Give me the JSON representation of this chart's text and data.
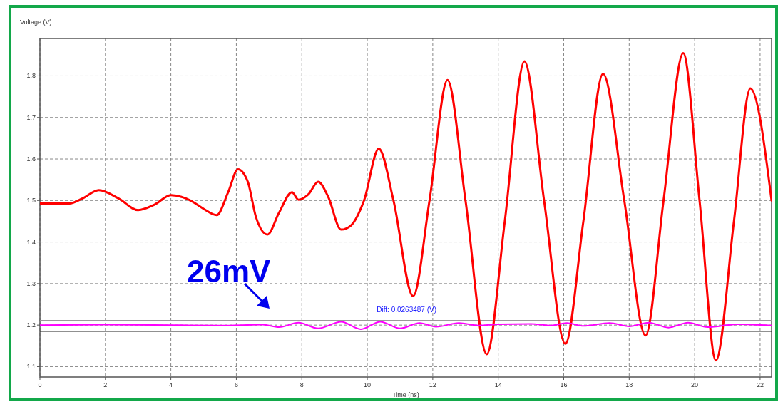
{
  "chart_data": {
    "type": "line",
    "xlabel": "Time (ns)",
    "ylabel": "Voltage (V)",
    "xlim": [
      0,
      22.35
    ],
    "ylim": [
      1.075,
      1.89
    ],
    "xticks": [
      0,
      2,
      4,
      6,
      8,
      10,
      12,
      14,
      16,
      18,
      20,
      22
    ],
    "yticks": [
      1.1,
      1.2,
      1.3,
      1.4,
      1.5,
      1.6,
      1.7,
      1.8
    ],
    "grid": true,
    "marker": "none",
    "line_style": "solid",
    "series": [
      {
        "color": "#ff0000",
        "x": [
          0,
          0.9,
          1.3,
          1.8,
          2.4,
          3.0,
          3.5,
          4.0,
          4.6,
          5.0,
          5.4,
          5.75,
          6.05,
          6.35,
          6.6,
          6.95,
          7.3,
          7.7,
          7.9,
          8.2,
          8.5,
          8.8,
          9.2,
          9.5,
          9.9,
          10.35,
          10.8,
          11.4,
          11.9,
          12.45,
          13.0,
          13.65,
          14.2,
          14.8,
          15.4,
          16.05,
          16.6,
          17.2,
          17.85,
          18.5,
          19.05,
          19.65,
          20.15,
          20.65,
          21.2,
          21.7,
          22.35
        ],
        "values": [
          1.493,
          1.493,
          1.505,
          1.525,
          1.505,
          1.477,
          1.49,
          1.513,
          1.5,
          1.48,
          1.465,
          1.52,
          1.575,
          1.545,
          1.46,
          1.418,
          1.47,
          1.52,
          1.502,
          1.515,
          1.545,
          1.51,
          1.43,
          1.44,
          1.5,
          1.625,
          1.5,
          1.27,
          1.5,
          1.79,
          1.5,
          1.13,
          1.45,
          1.835,
          1.5,
          1.155,
          1.45,
          1.805,
          1.5,
          1.175,
          1.5,
          1.855,
          1.5,
          1.115,
          1.45,
          1.77,
          1.5
        ]
      },
      {
        "color": "#ff00ff",
        "x": [
          0,
          2,
          4,
          5.5,
          6.8,
          7.3,
          7.9,
          8.5,
          9.2,
          9.8,
          10.4,
          11.0,
          11.6,
          12.1,
          12.8,
          13.4,
          14.0,
          15.0,
          15.6,
          16.1,
          16.6,
          17.4,
          18.0,
          18.6,
          19.2,
          19.8,
          20.4,
          21.3,
          22.35
        ],
        "values": [
          1.2,
          1.201,
          1.2,
          1.199,
          1.201,
          1.195,
          1.206,
          1.192,
          1.208,
          1.19,
          1.208,
          1.192,
          1.205,
          1.196,
          1.205,
          1.199,
          1.202,
          1.203,
          1.199,
          1.205,
          1.198,
          1.205,
          1.197,
          1.206,
          1.194,
          1.206,
          1.195,
          1.202,
          1.199
        ]
      }
    ],
    "ref_lines": [
      {
        "axis": "y",
        "value": 1.211,
        "color": "#999999"
      },
      {
        "axis": "y",
        "value": 1.185,
        "color": "#222222"
      }
    ],
    "annotations": [
      "26mV",
      {
        "text": "Diff: 0.0263487 (V)",
        "x": 11.2,
        "y": 1.211
      }
    ]
  }
}
